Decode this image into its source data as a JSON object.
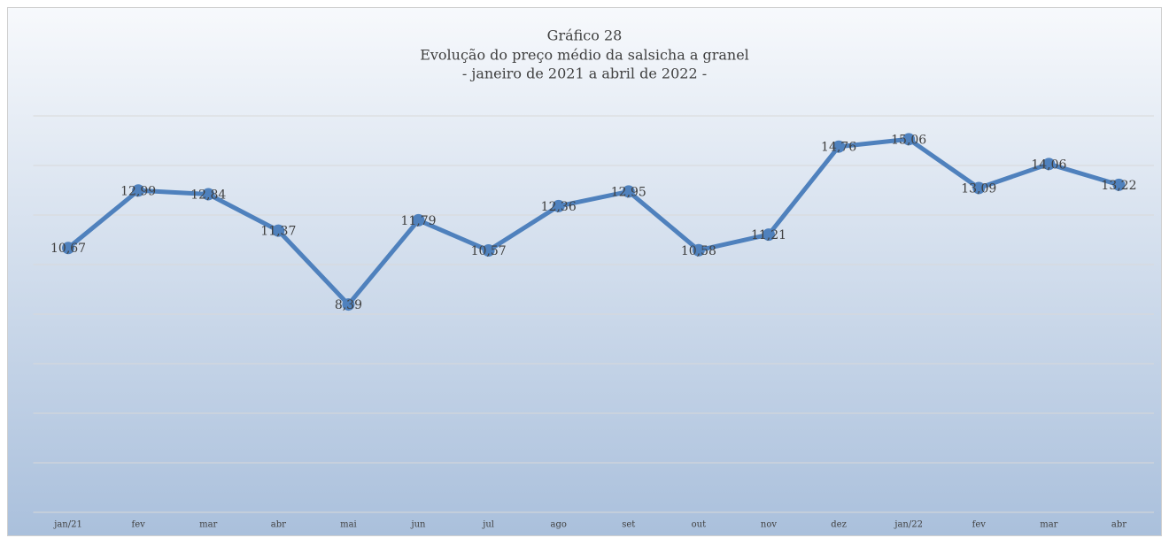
{
  "chart_data": {
    "type": "line",
    "title": [
      "Gráfico 28",
      "Evolução do preço médio da salsicha a granel",
      "- janeiro de 2021 a abril de 2022 -"
    ],
    "categories": [
      "jan/21",
      "fev",
      "mar",
      "abr",
      "mai",
      "jun",
      "jul",
      "ago",
      "set",
      "out",
      "nov",
      "dez",
      "jan/22",
      "fev",
      "mar",
      "abr"
    ],
    "values": [
      10.67,
      12.99,
      12.84,
      11.37,
      8.39,
      11.79,
      10.57,
      12.36,
      12.95,
      10.58,
      11.21,
      14.76,
      15.06,
      13.09,
      14.06,
      13.22
    ],
    "value_labels": [
      "10,67",
      "12,99",
      "12,84",
      "11,37",
      "8,39",
      "11,79",
      "10,57",
      "12,36",
      "12,95",
      "10,58",
      "11,21",
      "14,76",
      "15,06",
      "13,09",
      "14,06",
      "13,22"
    ],
    "color": "#4f81bd",
    "ylim": [
      0,
      16
    ],
    "yticks": [
      0,
      2,
      4,
      6,
      8,
      10,
      12,
      14,
      16
    ],
    "grid": true
  }
}
